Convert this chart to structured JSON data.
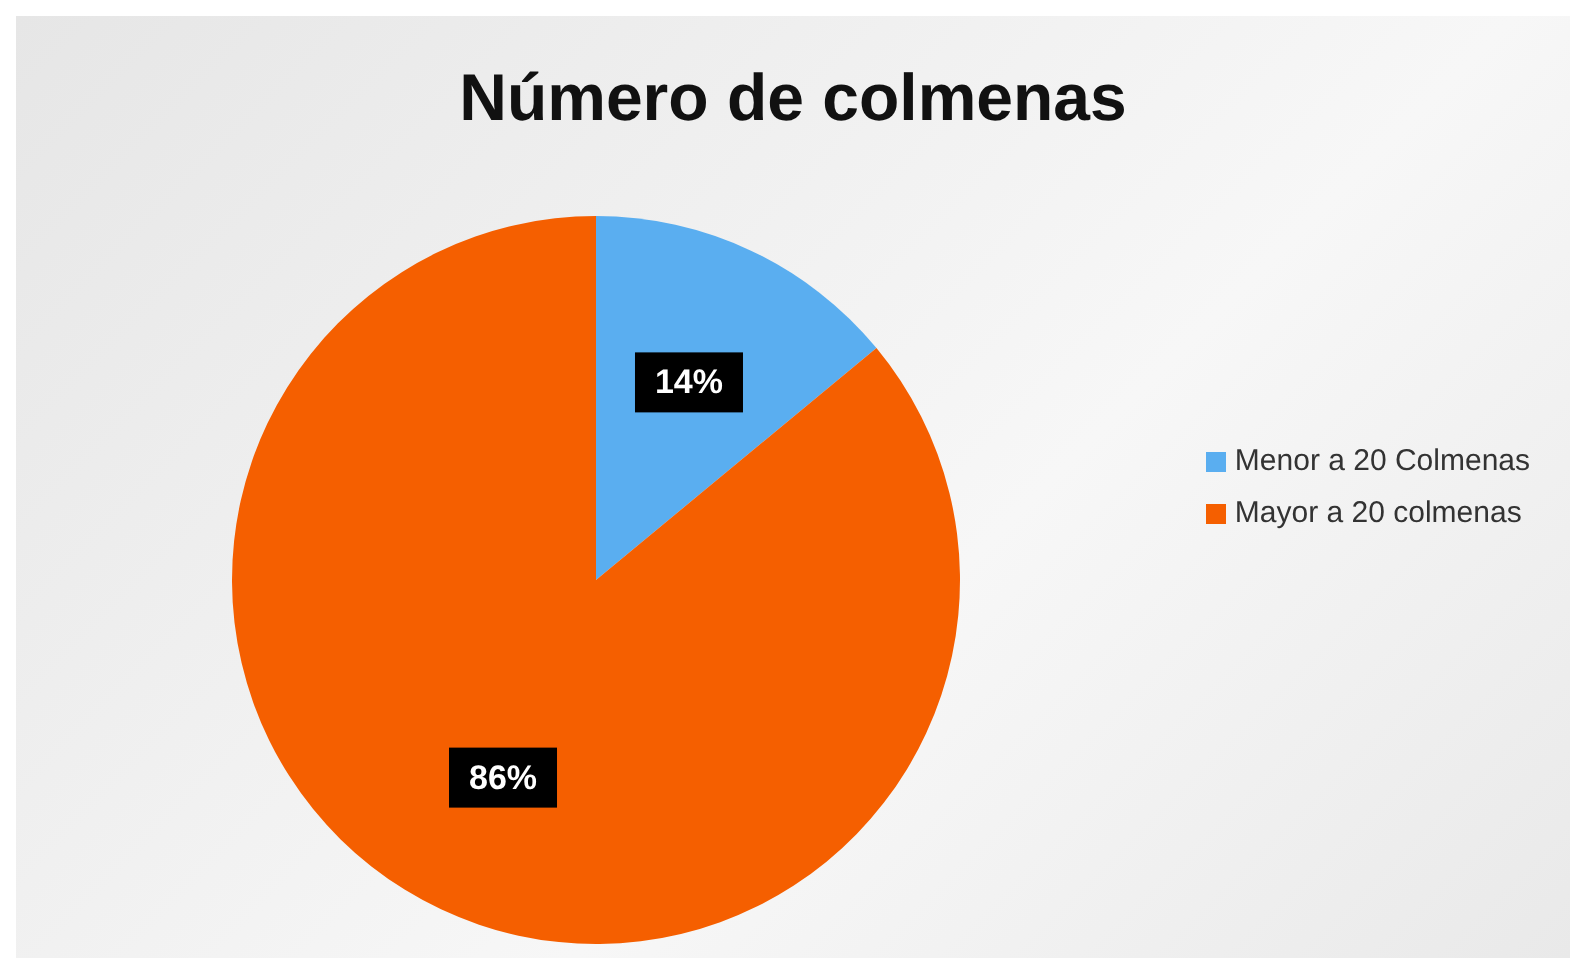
{
  "chart_data": {
    "type": "pie",
    "title": "Número de colmenas",
    "categories": [
      "Menor a 20 Colmenas",
      "Mayor a 20 colmenas"
    ],
    "values": [
      14,
      86
    ],
    "colors": [
      "#5aaef0",
      "#f55f00"
    ],
    "value_labels": [
      "14%",
      "86%"
    ],
    "legend": "right"
  }
}
